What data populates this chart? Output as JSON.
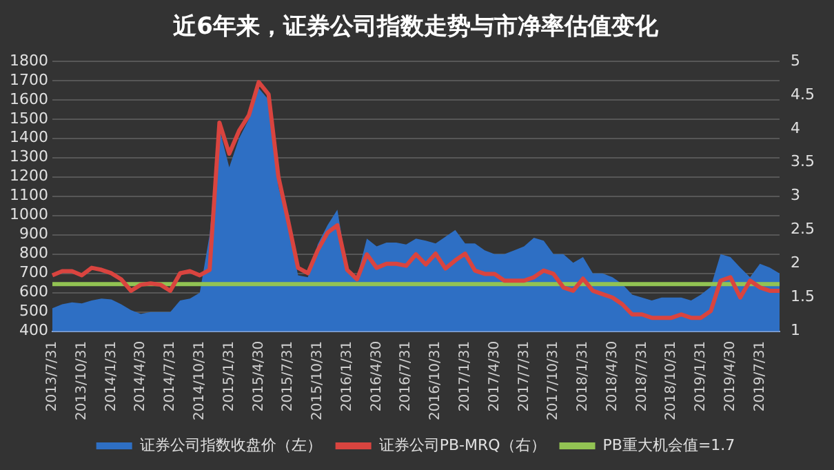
{
  "chart_data": {
    "type": "line",
    "title": "近6年来，证券公司指数走势与市净率估值变化",
    "categories": [
      "2013/7/31",
      null,
      null,
      "2013/10/31",
      null,
      null,
      "2014/1/31",
      null,
      null,
      "2014/4/30",
      null,
      null,
      "2014/7/31",
      null,
      null,
      "2014/10/31",
      null,
      null,
      "2015/1/31",
      null,
      null,
      "2015/4/30",
      null,
      null,
      "2015/7/31",
      null,
      null,
      "2015/10/31",
      null,
      null,
      "2016/1/31",
      null,
      null,
      "2016/4/30",
      null,
      null,
      "2016/7/31",
      null,
      null,
      "2016/10/31",
      null,
      null,
      "2017/1/31",
      null,
      null,
      "2017/4/30",
      null,
      null,
      "2017/7/31",
      null,
      null,
      "2017/10/31",
      null,
      null,
      "2018/1/31",
      null,
      null,
      "2018/4/30",
      null,
      null,
      "2018/7/31",
      null,
      null,
      "2018/10/31",
      null,
      null,
      "2019/1/31",
      null,
      null,
      "2019/4/30",
      null,
      null,
      "2019/7/31",
      null,
      null
    ],
    "series": [
      {
        "name": "证券公司指数收盘价（左）",
        "type": "area",
        "color": "#2e6fc4",
        "values": [
          520,
          540,
          550,
          545,
          560,
          570,
          565,
          540,
          510,
          490,
          500,
          500,
          500,
          560,
          570,
          600,
          900,
          1450,
          1250,
          1400,
          1500,
          1660,
          1600,
          1150,
          950,
          690,
          680,
          850,
          950,
          1030,
          720,
          680,
          880,
          840,
          860,
          860,
          850,
          880,
          870,
          855,
          890,
          925,
          855,
          855,
          820,
          800,
          800,
          820,
          840,
          885,
          870,
          800,
          800,
          755,
          785,
          700,
          700,
          680,
          645,
          590,
          575,
          560,
          575,
          575,
          575,
          560,
          590,
          630,
          800,
          785,
          730,
          680,
          750,
          730,
          700
        ]
      },
      {
        "name": "证券公司PB-MRQ（右）",
        "type": "line",
        "axis": "y2",
        "color": "#d9443f",
        "values": [
          1.83,
          1.89,
          1.89,
          1.83,
          1.94,
          1.91,
          1.86,
          1.77,
          1.6,
          1.69,
          1.71,
          1.69,
          1.6,
          1.86,
          1.89,
          1.83,
          1.91,
          4.09,
          3.63,
          3.97,
          4.2,
          4.69,
          4.51,
          3.29,
          2.63,
          1.94,
          1.86,
          2.2,
          2.46,
          2.57,
          1.91,
          1.77,
          2.14,
          1.94,
          2.0,
          2.0,
          1.97,
          2.14,
          1.99,
          2.15,
          1.93,
          2.05,
          2.15,
          1.9,
          1.85,
          1.85,
          1.75,
          1.75,
          1.75,
          1.8,
          1.9,
          1.85,
          1.65,
          1.6,
          1.78,
          1.6,
          1.55,
          1.5,
          1.4,
          1.25,
          1.25,
          1.2,
          1.2,
          1.2,
          1.25,
          1.2,
          1.2,
          1.3,
          1.75,
          1.8,
          1.5,
          1.75,
          1.65,
          1.6,
          1.6
        ]
      },
      {
        "name": "PB重大机会值=1.7",
        "type": "line",
        "axis": "y2",
        "color": "#92c353",
        "values": [
          1.7,
          1.7,
          1.7,
          1.7,
          1.7,
          1.7,
          1.7,
          1.7,
          1.7,
          1.7,
          1.7,
          1.7,
          1.7,
          1.7,
          1.7,
          1.7,
          1.7,
          1.7,
          1.7,
          1.7,
          1.7,
          1.7,
          1.7,
          1.7,
          1.7,
          1.7,
          1.7,
          1.7,
          1.7,
          1.7,
          1.7,
          1.7,
          1.7,
          1.7,
          1.7,
          1.7,
          1.7,
          1.7,
          1.7,
          1.7,
          1.7,
          1.7,
          1.7,
          1.7,
          1.7,
          1.7,
          1.7,
          1.7,
          1.7,
          1.7,
          1.7,
          1.7,
          1.7,
          1.7,
          1.7,
          1.7,
          1.7,
          1.7,
          1.7,
          1.7,
          1.7,
          1.7,
          1.7,
          1.7,
          1.7,
          1.7,
          1.7,
          1.7,
          1.7,
          1.7,
          1.7,
          1.7,
          1.7,
          1.7,
          1.7
        ]
      }
    ],
    "ylim": [
      400,
      1800
    ],
    "yticks": [
      400,
      500,
      600,
      700,
      800,
      900,
      1000,
      1100,
      1200,
      1300,
      1400,
      1500,
      1600,
      1700,
      1800
    ],
    "y2lim": [
      1,
      5
    ],
    "y2ticks": [
      1,
      1.5,
      2,
      2.5,
      3,
      3.5,
      4,
      4.5,
      5
    ],
    "grid": "y",
    "legend": "bottom",
    "marker": "none"
  }
}
